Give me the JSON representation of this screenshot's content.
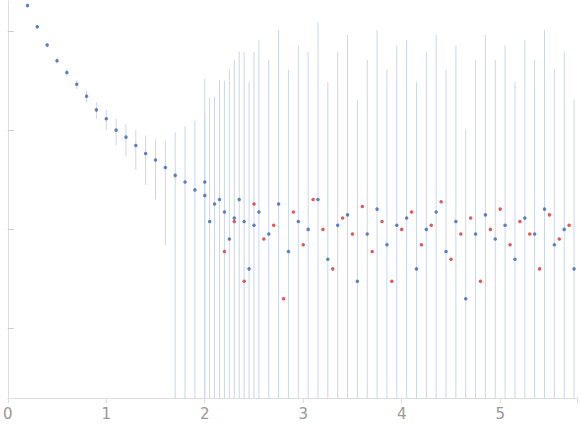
{
  "chart_data": {
    "type": "scatter",
    "log": "y",
    "grid": false,
    "tick_labels": "x",
    "xlim": [
      0,
      5.78
    ],
    "xticks": [
      0,
      1,
      2,
      3,
      4,
      5
    ],
    "ylim": [
      0.0002,
      2
    ],
    "yticks": [
      0.001,
      0.01,
      0.1,
      1
    ],
    "series": [
      {
        "color": "#3a63b8",
        "marker": "circle",
        "x": [
          0.2,
          0.3,
          0.4,
          0.5,
          0.6,
          0.7,
          0.8,
          0.9,
          1.0,
          1.1,
          1.2,
          1.3,
          1.4,
          1.5,
          1.6,
          1.7,
          1.8,
          1.9,
          2.0,
          2.0,
          2.05,
          2.1,
          2.15,
          2.2,
          2.25,
          2.3,
          2.35,
          2.4,
          2.45,
          2.5,
          2.55,
          2.65,
          2.75,
          2.85,
          2.95,
          3.05,
          3.15,
          3.25,
          3.35,
          3.45,
          3.55,
          3.65,
          3.75,
          3.85,
          3.95,
          4.05,
          4.15,
          4.25,
          4.35,
          4.45,
          4.55,
          4.65,
          4.75,
          4.85,
          4.95,
          5.05,
          5.15,
          5.25,
          5.35,
          5.45,
          5.55,
          5.65,
          5.75
        ],
        "values": [
          1.8,
          1.1,
          0.72,
          0.5,
          0.38,
          0.29,
          0.22,
          0.16,
          0.13,
          0.1,
          0.085,
          0.07,
          0.058,
          0.05,
          0.042,
          0.035,
          0.03,
          0.025,
          0.022,
          0.03,
          0.012,
          0.018,
          0.02,
          0.015,
          0.008,
          0.013,
          0.02,
          0.012,
          0.004,
          0.011,
          0.015,
          0.009,
          0.018,
          0.006,
          0.012,
          0.01,
          0.02,
          0.005,
          0.011,
          0.014,
          0.003,
          0.009,
          0.016,
          0.007,
          0.011,
          0.013,
          0.004,
          0.01,
          0.015,
          0.006,
          0.012,
          0.002,
          0.009,
          0.014,
          0.008,
          0.011,
          0.005,
          0.013,
          0.009,
          0.016,
          0.007,
          0.01,
          0.004
        ],
        "errors": [
          0.1,
          0.05,
          0.04,
          0.03,
          0.03,
          0.03,
          0.03,
          0.03,
          0.03,
          0.03,
          0.03,
          0.03,
          0.03,
          0.03,
          0.035,
          0.06,
          0.08,
          0.1,
          0.12,
          0.3,
          0.2,
          0.2,
          0.3,
          0.3,
          0.4,
          0.5,
          0.6,
          0.6,
          0.3,
          0.6,
          0.8,
          0.5,
          1.0,
          0.4,
          0.7,
          0.6,
          1.2,
          0.3,
          0.6,
          0.9,
          0.2,
          0.5,
          1.0,
          0.4,
          0.7,
          0.8,
          0.3,
          0.6,
          0.9,
          0.4,
          0.7,
          0.1,
          0.5,
          0.9,
          0.5,
          0.7,
          0.3,
          0.8,
          0.5,
          1.0,
          0.4,
          0.6,
          0.2
        ]
      },
      {
        "color": "#d93030",
        "marker": "circle",
        "x": [
          2.2,
          2.3,
          2.4,
          2.5,
          2.6,
          2.7,
          2.8,
          2.9,
          3.0,
          3.1,
          3.2,
          3.3,
          3.4,
          3.5,
          3.6,
          3.7,
          3.8,
          3.9,
          4.0,
          4.1,
          4.2,
          4.3,
          4.4,
          4.5,
          4.6,
          4.7,
          4.8,
          4.9,
          5.0,
          5.1,
          5.2,
          5.3,
          5.4,
          5.5,
          5.6,
          5.7
        ],
        "values": [
          0.006,
          0.012,
          0.003,
          0.018,
          0.008,
          0.011,
          0.002,
          0.015,
          0.007,
          0.02,
          0.01,
          0.004,
          0.013,
          0.009,
          0.017,
          0.006,
          0.012,
          0.003,
          0.01,
          0.015,
          0.007,
          0.011,
          0.019,
          0.005,
          0.009,
          0.013,
          0.003,
          0.01,
          0.016,
          0.007,
          0.012,
          0.009,
          0.004,
          0.014,
          0.008,
          0.011
        ]
      }
    ]
  }
}
